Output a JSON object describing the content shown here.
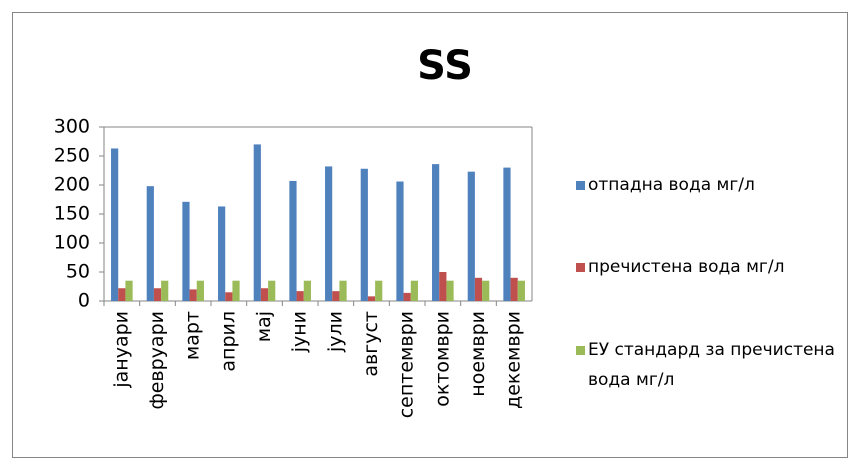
{
  "chart_data": {
    "type": "bar",
    "title": "SS",
    "categories": [
      "јануари",
      "февруари",
      "март",
      "април",
      "мај",
      "јуни",
      "јули",
      "август",
      "септември",
      "октомври",
      "ноември",
      "декември"
    ],
    "series": [
      {
        "name": "отпадна вода мг/л",
        "color": "#4f81bd",
        "values": [
          263,
          198,
          171,
          163,
          270,
          207,
          232,
          228,
          206,
          236,
          223,
          230
        ]
      },
      {
        "name": "пречистена вода мг/л",
        "color": "#c0504d",
        "values": [
          22,
          22,
          20,
          15,
          22,
          17,
          17,
          8,
          14,
          50,
          40,
          40
        ]
      },
      {
        "name": "ЕУ стандард за пречистена вода мг/л",
        "color": "#9bbb59",
        "values": [
          35,
          35,
          35,
          35,
          35,
          35,
          35,
          35,
          35,
          35,
          35,
          35
        ]
      }
    ],
    "ylim": [
      0,
      300
    ],
    "yticks": [
      0,
      50,
      100,
      150,
      200,
      250,
      300
    ],
    "grid": false,
    "legend": "right"
  }
}
